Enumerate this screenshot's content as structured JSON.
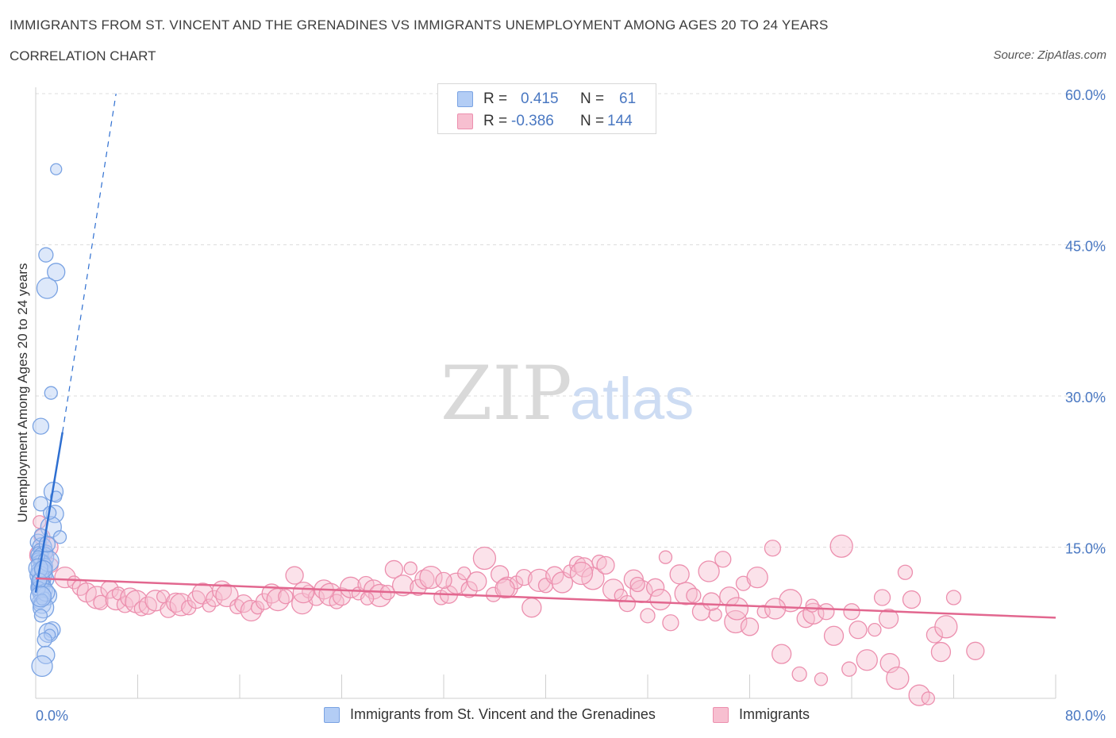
{
  "header": {
    "title": "IMMIGRANTS FROM ST. VINCENT AND THE GRENADINES VS IMMIGRANTS UNEMPLOYMENT AMONG AGES 20 TO 24 YEARS",
    "subtitle": "CORRELATION CHART",
    "source": "Source: ZipAtlas.com"
  },
  "legend": {
    "rows": [
      {
        "r_label": "R =",
        "r_value": "0.415",
        "n_label": "N =",
        "n_value": "61"
      },
      {
        "r_label": "R =",
        "r_value": "-0.386",
        "n_label": "N =",
        "n_value": "144"
      }
    ]
  },
  "watermark": {
    "zip": "ZIP",
    "atlas": "atlas"
  },
  "colors": {
    "blue_fill": "#b3cdf5",
    "blue_stroke": "#7aa3e3",
    "blue_line": "#2e6fd1",
    "pink_fill": "#f7bfd0",
    "pink_stroke": "#ec8fae",
    "pink_line": "#e2678f",
    "axis_text": "#4a78c2",
    "grid": "#dcdcdc"
  },
  "chart_data": {
    "type": "scatter",
    "title": "IMMIGRANTS FROM ST. VINCENT AND THE GRENADINES VS IMMIGRANTS UNEMPLOYMENT AMONG AGES 20 TO 24 YEARS",
    "xlabel": "",
    "ylabel": "Unemployment Among Ages 20 to 24 years",
    "xlim": [
      0,
      80
    ],
    "ylim": [
      0,
      60
    ],
    "x_tick_labels": [
      "0.0%",
      "80.0%"
    ],
    "y_ticks": [
      15,
      30,
      45,
      60
    ],
    "y_tick_labels": [
      "15.0%",
      "30.0%",
      "45.0%",
      "60.0%"
    ],
    "grid": true,
    "legend_position": "bottom",
    "series": [
      {
        "name": "Immigrants from St. Vincent and the Grenadines",
        "r": 0.415,
        "n": 61,
        "trend": {
          "x0": 0.0,
          "y0": 10.5,
          "x1": 2.1,
          "y1": 26.4,
          "dash_x1": 6.3,
          "dash_y1": 60.0
        },
        "points": [
          [
            1.6,
            52.5
          ],
          [
            0.8,
            44.0
          ],
          [
            1.6,
            42.3
          ],
          [
            0.9,
            40.7
          ],
          [
            1.2,
            30.3
          ],
          [
            0.4,
            27.0
          ],
          [
            1.4,
            20.5
          ],
          [
            1.6,
            20.0
          ],
          [
            0.4,
            19.3
          ],
          [
            1.5,
            18.3
          ],
          [
            1.2,
            17.0
          ],
          [
            1.9,
            16.0
          ],
          [
            0.2,
            15.5
          ],
          [
            0.5,
            15.0
          ],
          [
            0.3,
            14.8
          ],
          [
            0.8,
            14.5
          ],
          [
            0.3,
            14.2
          ],
          [
            0.6,
            14.0
          ],
          [
            0.2,
            13.8
          ],
          [
            0.5,
            13.5
          ],
          [
            0.4,
            13.3
          ],
          [
            0.3,
            13.0
          ],
          [
            0.2,
            12.7
          ],
          [
            0.6,
            12.5
          ],
          [
            0.5,
            12.3
          ],
          [
            0.3,
            12.0
          ],
          [
            0.8,
            11.8
          ],
          [
            0.4,
            11.6
          ],
          [
            0.2,
            11.4
          ],
          [
            0.6,
            11.2
          ],
          [
            0.3,
            11.0
          ],
          [
            0.5,
            10.8
          ],
          [
            0.2,
            10.6
          ],
          [
            0.4,
            10.4
          ],
          [
            0.9,
            10.2
          ],
          [
            0.7,
            10.0
          ],
          [
            0.3,
            9.6
          ],
          [
            0.5,
            9.3
          ],
          [
            0.6,
            9.0
          ],
          [
            0.4,
            8.2
          ],
          [
            1.3,
            6.8
          ],
          [
            1.0,
            6.5
          ],
          [
            1.1,
            6.3
          ],
          [
            0.7,
            5.8
          ],
          [
            0.8,
            4.3
          ],
          [
            0.5,
            3.2
          ],
          [
            0.2,
            14.0
          ],
          [
            0.7,
            13.1
          ],
          [
            0.3,
            12.2
          ],
          [
            0.6,
            11.5
          ],
          [
            0.2,
            10.9
          ],
          [
            0.8,
            10.5
          ],
          [
            1.0,
            13.6
          ],
          [
            0.4,
            16.2
          ],
          [
            0.9,
            15.3
          ],
          [
            0.2,
            12.9
          ],
          [
            0.5,
            9.8
          ],
          [
            0.3,
            11.7
          ],
          [
            0.6,
            12.8
          ],
          [
            0.4,
            10.1
          ],
          [
            1.1,
            18.4
          ]
        ]
      },
      {
        "name": "Immigrants",
        "r": -0.386,
        "n": 144,
        "trend": {
          "x0": 0.0,
          "y0": 11.9,
          "x1": 80.0,
          "y1": 8.0
        },
        "points": [
          [
            0.3,
            17.5
          ],
          [
            0.5,
            16.0
          ],
          [
            1.0,
            15.0
          ],
          [
            0.4,
            14.2
          ],
          [
            1.2,
            13.2
          ],
          [
            0.6,
            12.8
          ],
          [
            2.3,
            12.0
          ],
          [
            3.0,
            11.5
          ],
          [
            3.5,
            11.0
          ],
          [
            4.0,
            10.5
          ],
          [
            4.8,
            10.0
          ],
          [
            5.1,
            9.5
          ],
          [
            5.8,
            10.8
          ],
          [
            6.3,
            9.8
          ],
          [
            6.5,
            10.4
          ],
          [
            7.0,
            9.3
          ],
          [
            7.4,
            10.0
          ],
          [
            7.9,
            9.6
          ],
          [
            8.3,
            8.9
          ],
          [
            8.8,
            9.2
          ],
          [
            9.4,
            9.7
          ],
          [
            10.0,
            10.1
          ],
          [
            10.4,
            8.8
          ],
          [
            11.0,
            9.5
          ],
          [
            11.4,
            9.3
          ],
          [
            12.0,
            9.0
          ],
          [
            12.6,
            9.8
          ],
          [
            13.1,
            10.4
          ],
          [
            13.6,
            9.2
          ],
          [
            14.0,
            9.9
          ],
          [
            14.6,
            10.7
          ],
          [
            15.0,
            10.2
          ],
          [
            15.8,
            9.1
          ],
          [
            16.3,
            9.4
          ],
          [
            16.9,
            8.7
          ],
          [
            17.4,
            9.0
          ],
          [
            17.9,
            9.6
          ],
          [
            18.5,
            10.4
          ],
          [
            19.0,
            9.8
          ],
          [
            19.6,
            10.1
          ],
          [
            20.3,
            12.2
          ],
          [
            20.9,
            9.4
          ],
          [
            21.4,
            10.6
          ],
          [
            22.0,
            10.0
          ],
          [
            22.6,
            10.8
          ],
          [
            23.1,
            10.3
          ],
          [
            23.6,
            9.6
          ],
          [
            24.0,
            10.1
          ],
          [
            24.7,
            11.0
          ],
          [
            25.3,
            10.4
          ],
          [
            25.9,
            11.3
          ],
          [
            26.5,
            10.8
          ],
          [
            27.0,
            10.2
          ],
          [
            27.6,
            10.5
          ],
          [
            28.1,
            12.8
          ],
          [
            28.8,
            11.2
          ],
          [
            29.4,
            12.9
          ],
          [
            30.0,
            11.0
          ],
          [
            30.5,
            11.8
          ],
          [
            31.0,
            12.0
          ],
          [
            31.8,
            10.0
          ],
          [
            32.4,
            10.3
          ],
          [
            33.0,
            11.4
          ],
          [
            33.6,
            12.4
          ],
          [
            34.0,
            10.8
          ],
          [
            34.6,
            11.6
          ],
          [
            35.2,
            13.9
          ],
          [
            35.9,
            10.3
          ],
          [
            36.4,
            12.3
          ],
          [
            37.0,
            11.0
          ],
          [
            37.7,
            11.5
          ],
          [
            38.3,
            12.0
          ],
          [
            38.9,
            9.0
          ],
          [
            39.5,
            11.7
          ],
          [
            40.0,
            11.2
          ],
          [
            40.7,
            12.2
          ],
          [
            41.3,
            11.5
          ],
          [
            41.9,
            12.6
          ],
          [
            42.5,
            13.3
          ],
          [
            43.0,
            13.0
          ],
          [
            43.7,
            11.9
          ],
          [
            44.2,
            13.5
          ],
          [
            44.7,
            13.2
          ],
          [
            45.3,
            10.8
          ],
          [
            45.9,
            10.2
          ],
          [
            46.4,
            9.4
          ],
          [
            46.9,
            11.8
          ],
          [
            47.5,
            10.6
          ],
          [
            48.0,
            8.2
          ],
          [
            48.6,
            11.0
          ],
          [
            49.0,
            9.8
          ],
          [
            49.4,
            14.0
          ],
          [
            49.8,
            7.5
          ],
          [
            50.5,
            12.3
          ],
          [
            51.0,
            10.4
          ],
          [
            51.6,
            10.2
          ],
          [
            52.2,
            8.6
          ],
          [
            52.8,
            12.6
          ],
          [
            53.3,
            8.3
          ],
          [
            53.9,
            13.8
          ],
          [
            54.4,
            10.1
          ],
          [
            54.9,
            7.6
          ],
          [
            55.5,
            11.4
          ],
          [
            56.0,
            7.1
          ],
          [
            56.6,
            12.0
          ],
          [
            57.1,
            8.6
          ],
          [
            57.8,
            14.9
          ],
          [
            58.5,
            4.4
          ],
          [
            59.2,
            9.7
          ],
          [
            59.9,
            2.4
          ],
          [
            60.4,
            7.9
          ],
          [
            61.0,
            8.4
          ],
          [
            61.6,
            1.9
          ],
          [
            62.0,
            8.6
          ],
          [
            62.6,
            6.2
          ],
          [
            63.2,
            15.1
          ],
          [
            63.8,
            2.9
          ],
          [
            64.5,
            6.8
          ],
          [
            65.2,
            3.8
          ],
          [
            65.8,
            6.8
          ],
          [
            66.4,
            10.0
          ],
          [
            67.0,
            3.5
          ],
          [
            67.6,
            2.0
          ],
          [
            68.2,
            12.5
          ],
          [
            68.7,
            9.8
          ],
          [
            69.3,
            0.3
          ],
          [
            70.0,
            0.0
          ],
          [
            70.5,
            6.3
          ],
          [
            71.0,
            4.6
          ],
          [
            71.4,
            7.1
          ],
          [
            72.0,
            10.0
          ],
          [
            73.7,
            4.7
          ],
          [
            21.0,
            10.5
          ],
          [
            26.0,
            9.9
          ],
          [
            32.0,
            11.7
          ],
          [
            36.8,
            10.9
          ],
          [
            42.8,
            12.4
          ],
          [
            47.2,
            11.3
          ],
          [
            53.0,
            9.6
          ],
          [
            58.0,
            8.9
          ],
          [
            60.9,
            9.2
          ],
          [
            64.0,
            8.6
          ],
          [
            66.9,
            7.9
          ],
          [
            55.0,
            8.9
          ]
        ]
      }
    ]
  }
}
